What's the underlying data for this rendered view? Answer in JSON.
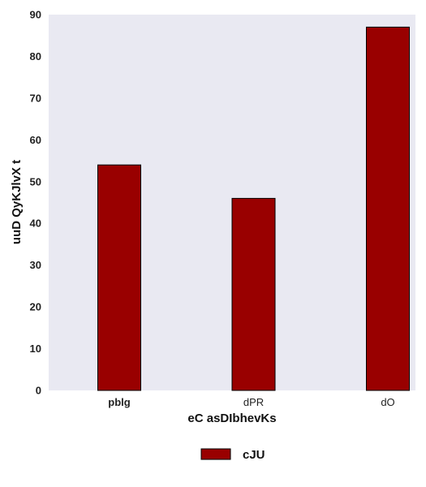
{
  "chart_data": {
    "type": "bar",
    "categories": [
      "pblg",
      "dPR",
      "dO"
    ],
    "bold_categories": [
      "pblg"
    ],
    "series": [
      {
        "name": "cJU",
        "values": [
          54,
          46,
          87
        ],
        "color": "#990000"
      }
    ],
    "xlabel": "eC asDIbhevKs",
    "ylabel": "uuD QyKJlvX t",
    "ylim": [
      0,
      90
    ],
    "yticks": [
      0,
      10,
      20,
      30,
      40,
      50,
      60,
      70,
      80,
      90
    ],
    "grid": false,
    "plot_background": "#e9e9f2",
    "bar_edge_color": "#000000",
    "legend_position": "bottom-center"
  }
}
